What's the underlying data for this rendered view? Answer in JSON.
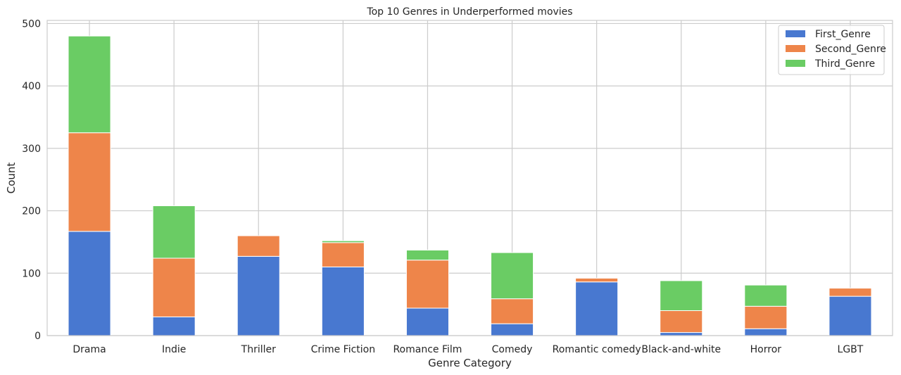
{
  "chart_data": {
    "type": "bar",
    "stacked": true,
    "title": "Top 10 Genres in Underperformed movies",
    "xlabel": "Genre Category",
    "ylabel": "Count",
    "categories": [
      "Drama",
      "Indie",
      "Thriller",
      "Crime Fiction",
      "Romance Film",
      "Comedy",
      "Romantic comedy",
      "Black-and-white",
      "Horror",
      "LGBT"
    ],
    "series": [
      {
        "name": "First_Genre",
        "color": "#4878d0",
        "values": [
          167,
          30,
          127,
          110,
          44,
          19,
          86,
          5,
          11,
          63
        ]
      },
      {
        "name": "Second_Genre",
        "color": "#ee854a",
        "values": [
          158,
          94,
          33,
          39,
          77,
          40,
          6,
          35,
          36,
          13
        ]
      },
      {
        "name": "Third_Genre",
        "color": "#6acc64",
        "values": [
          155,
          84,
          0,
          3,
          16,
          74,
          0,
          48,
          34,
          0
        ]
      }
    ],
    "ylim": [
      0,
      505
    ],
    "yticks": [
      0,
      100,
      200,
      300,
      400,
      500
    ],
    "grid": true,
    "legend_position": "top-right"
  }
}
